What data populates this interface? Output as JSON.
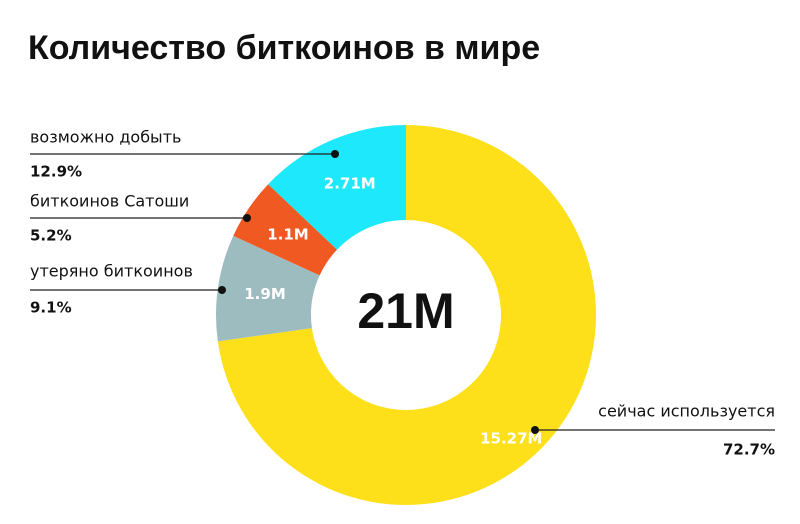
{
  "chart_data": {
    "type": "donut",
    "title": "Количество биткоинов в мире",
    "categories": [
      "сейчас используется",
      "утеряно биткоинов",
      "биткоинов Сатоши",
      "возможно добыть"
    ],
    "values": [
      15.27,
      1.9,
      1.1,
      2.71
    ],
    "value_labels": [
      "15.27M",
      "1.9M",
      "1.1M",
      "2.71M"
    ],
    "colors": [
      "#fde01a",
      "#9dbcbf",
      "#f05a22",
      "#1ee8fb"
    ],
    "shares": [
      {
        "value": 72.7,
        "label": "72.7%"
      },
      {
        "value": 9.1,
        "label": "9.1%"
      },
      {
        "value": 5.2,
        "label": "5.2%"
      },
      {
        "value": 12.9,
        "label": "12.9%"
      }
    ],
    "total": {
      "value": 21,
      "label": "21M"
    }
  }
}
